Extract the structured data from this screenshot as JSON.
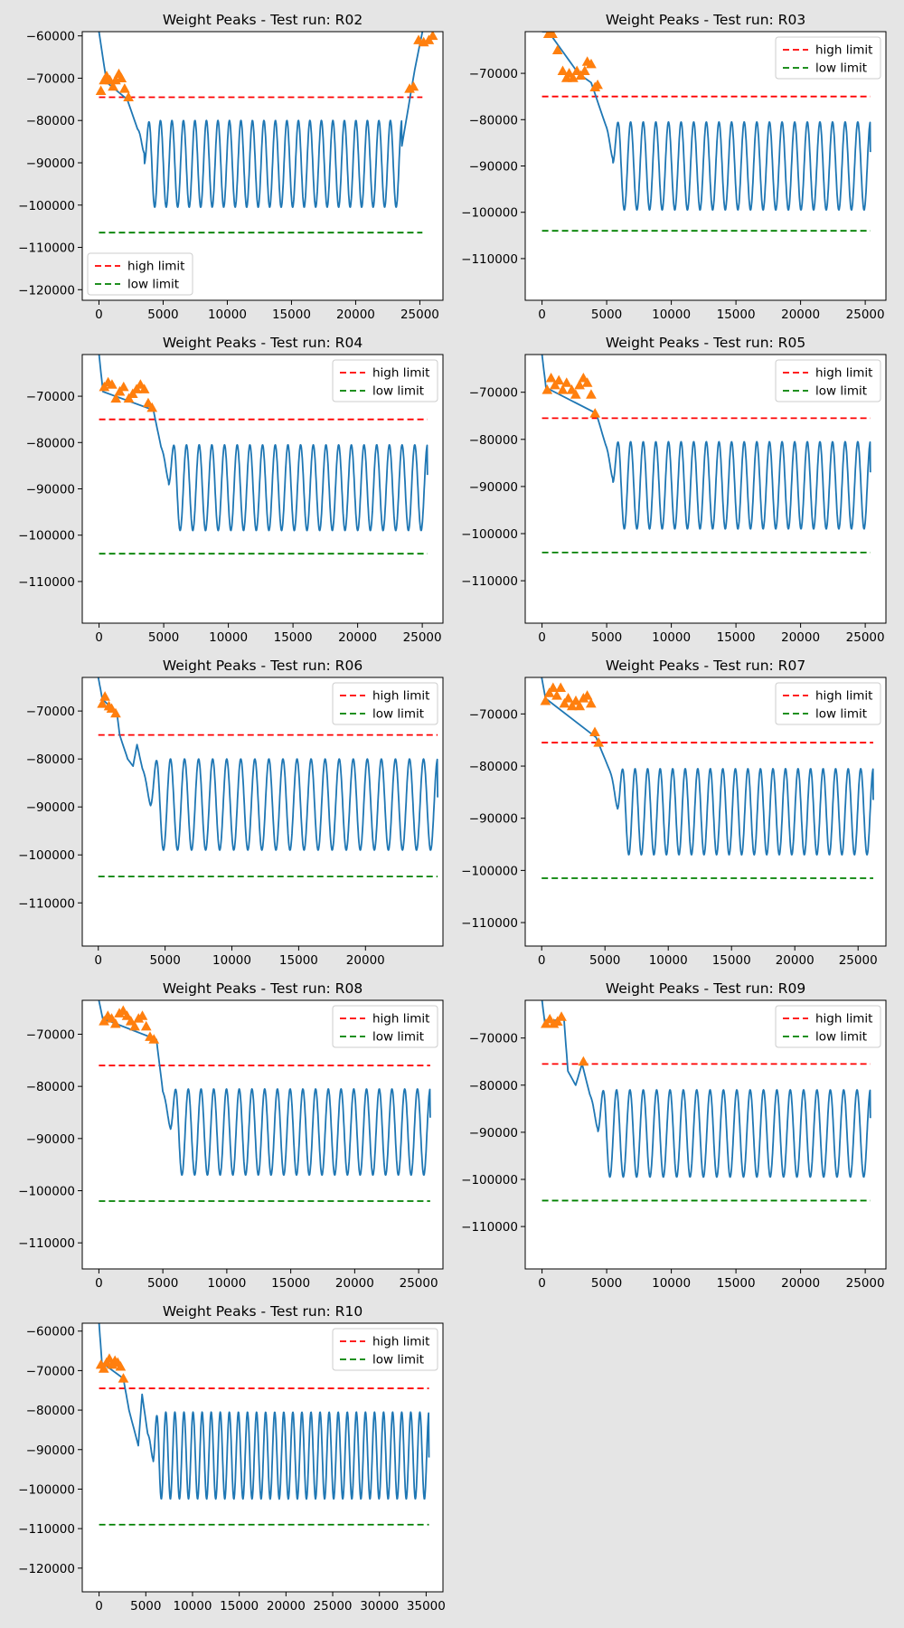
{
  "figure": {
    "background": "#e5e5e5",
    "colors": {
      "signal": "#1f77b4",
      "peaks": "#ff7f0e",
      "high_limit": "#ff0000",
      "low_limit": "#008000"
    },
    "legend": {
      "high_label": "high limit",
      "low_label": "low limit"
    }
  },
  "chart_data": [
    {
      "type": "line",
      "title": "Weight Peaks - Test run: R02",
      "xlim": [
        -1300,
        26800
      ],
      "ylim": [
        -122500,
        -59000
      ],
      "xticks": [
        0,
        5000,
        10000,
        15000,
        20000,
        25000
      ],
      "yticks": [
        -120000,
        -110000,
        -100000,
        -90000,
        -80000,
        -70000,
        -60000
      ],
      "high_limit": -74500,
      "low_limit": -106500,
      "legend_loc": "lower-left",
      "segments": [
        {
          "x_start": 0,
          "y_start": -59000,
          "x_end": 600,
          "y_end": -71000
        },
        {
          "x_start": 2200,
          "y_start": -75000,
          "x_end": 3000,
          "y_end": -82000
        },
        {
          "x_start": 23600,
          "y_start": -86000,
          "x_end": 24600,
          "y_end": -68000
        },
        {
          "x_start": 24600,
          "y_start": -68000,
          "x_end": 25200,
          "y_end": -59000
        }
      ],
      "oscillation": {
        "x_start": 3000,
        "x_end": 23600,
        "pre_level": -82000,
        "settle_level": -86000,
        "cycles": 23,
        "top": -80000,
        "bottom": -100500,
        "end_value": -86000
      },
      "peaks": [
        {
          "x": 150,
          "y": -73000
        },
        {
          "x": 400,
          "y": -70500
        },
        {
          "x": 600,
          "y": -69500
        },
        {
          "x": 850,
          "y": -70500
        },
        {
          "x": 1100,
          "y": -72000
        },
        {
          "x": 1300,
          "y": -70500
        },
        {
          "x": 1550,
          "y": -69000
        },
        {
          "x": 1750,
          "y": -70000
        },
        {
          "x": 2000,
          "y": -72500
        },
        {
          "x": 2300,
          "y": -74500
        },
        {
          "x": 24200,
          "y": -72500
        },
        {
          "x": 24500,
          "y": -72000
        },
        {
          "x": 24900,
          "y": -61000
        },
        {
          "x": 25300,
          "y": -61500
        },
        {
          "x": 25700,
          "y": -61000
        },
        {
          "x": 26000,
          "y": -60000
        }
      ]
    },
    {
      "type": "line",
      "title": "Weight Peaks - Test run: R03",
      "xlim": [
        -1300,
        26600
      ],
      "ylim": [
        -119000,
        -61000
      ],
      "xticks": [
        0,
        5000,
        10000,
        15000,
        20000,
        25000
      ],
      "yticks": [
        -110000,
        -100000,
        -90000,
        -80000,
        -70000
      ],
      "high_limit": -75000,
      "low_limit": -104000,
      "legend_loc": "upper-right",
      "segments": [
        {
          "x_start": 0,
          "y_start": -61000,
          "x_end": 500,
          "y_end": -61000
        },
        {
          "x_start": 500,
          "y_start": -61000,
          "x_end": 2800,
          "y_end": -70000
        },
        {
          "x_start": 3800,
          "y_start": -72000,
          "x_end": 4900,
          "y_end": -81000
        }
      ],
      "oscillation": {
        "x_start": 4900,
        "x_end": 25400,
        "pre_level": -81000,
        "settle_level": -88000,
        "cycles": 21,
        "top": -80500,
        "bottom": -99500,
        "end_value": -87000
      },
      "peaks": [
        {
          "x": 500,
          "y": -61500
        },
        {
          "x": 800,
          "y": -61500
        },
        {
          "x": 1200,
          "y": -65000
        },
        {
          "x": 1600,
          "y": -69500
        },
        {
          "x": 1900,
          "y": -71000
        },
        {
          "x": 2100,
          "y": -70000
        },
        {
          "x": 2400,
          "y": -71000
        },
        {
          "x": 2700,
          "y": -69500
        },
        {
          "x": 3000,
          "y": -70500
        },
        {
          "x": 3300,
          "y": -69500
        },
        {
          "x": 3500,
          "y": -67500
        },
        {
          "x": 3800,
          "y": -68000
        },
        {
          "x": 4100,
          "y": -73000
        },
        {
          "x": 4300,
          "y": -72500
        }
      ]
    },
    {
      "type": "line",
      "title": "Weight Peaks - Test run: R04",
      "xlim": [
        -1300,
        26600
      ],
      "ylim": [
        -119000,
        -61000
      ],
      "xticks": [
        0,
        5000,
        10000,
        15000,
        20000,
        25000
      ],
      "yticks": [
        -110000,
        -100000,
        -90000,
        -80000,
        -70000
      ],
      "high_limit": -75000,
      "low_limit": -104000,
      "legend_loc": "upper-right",
      "segments": [
        {
          "x_start": 0,
          "y_start": -61000,
          "x_end": 300,
          "y_end": -69000
        },
        {
          "x_start": 4200,
          "y_start": -73000,
          "x_end": 4800,
          "y_end": -81000
        }
      ],
      "oscillation": {
        "x_start": 4800,
        "x_end": 25400,
        "pre_level": -81000,
        "settle_level": -88000,
        "cycles": 21,
        "top": -80500,
        "bottom": -99000,
        "end_value": -87000
      },
      "peaks": [
        {
          "x": 400,
          "y": -68000
        },
        {
          "x": 700,
          "y": -67000
        },
        {
          "x": 1000,
          "y": -67500
        },
        {
          "x": 1300,
          "y": -70500
        },
        {
          "x": 1600,
          "y": -69000
        },
        {
          "x": 1900,
          "y": -68000
        },
        {
          "x": 2300,
          "y": -70500
        },
        {
          "x": 2600,
          "y": -69500
        },
        {
          "x": 2900,
          "y": -68500
        },
        {
          "x": 3200,
          "y": -67500
        },
        {
          "x": 3500,
          "y": -68500
        },
        {
          "x": 3800,
          "y": -71500
        },
        {
          "x": 4100,
          "y": -72500
        }
      ]
    },
    {
      "type": "line",
      "title": "Weight Peaks - Test run: R05",
      "xlim": [
        -1300,
        26600
      ],
      "ylim": [
        -119000,
        -62000
      ],
      "xticks": [
        0,
        5000,
        10000,
        15000,
        20000,
        25000
      ],
      "yticks": [
        -110000,
        -100000,
        -90000,
        -80000,
        -70000
      ],
      "high_limit": -75500,
      "low_limit": -104000,
      "legend_loc": "upper-right",
      "segments": [
        {
          "x_start": 0,
          "y_start": -62000,
          "x_end": 300,
          "y_end": -69000
        },
        {
          "x_start": 4200,
          "y_start": -74500,
          "x_end": 4900,
          "y_end": -81000
        }
      ],
      "oscillation": {
        "x_start": 4900,
        "x_end": 25400,
        "pre_level": -81000,
        "settle_level": -88000,
        "cycles": 21,
        "top": -80500,
        "bottom": -99000,
        "end_value": -87000
      },
      "peaks": [
        {
          "x": 400,
          "y": -69500
        },
        {
          "x": 700,
          "y": -67000
        },
        {
          "x": 1000,
          "y": -68500
        },
        {
          "x": 1300,
          "y": -67500
        },
        {
          "x": 1600,
          "y": -69500
        },
        {
          "x": 1900,
          "y": -68000
        },
        {
          "x": 2300,
          "y": -69500
        },
        {
          "x": 2600,
          "y": -70500
        },
        {
          "x": 2900,
          "y": -68500
        },
        {
          "x": 3200,
          "y": -67000
        },
        {
          "x": 3500,
          "y": -68000
        },
        {
          "x": 3800,
          "y": -70500
        },
        {
          "x": 4100,
          "y": -74500
        }
      ]
    },
    {
      "type": "line",
      "title": "Weight Peaks - Test run: R06",
      "xlim": [
        -1200,
        25800
      ],
      "ylim": [
        -119000,
        -63000
      ],
      "xticks": [
        0,
        5000,
        10000,
        15000,
        20000
      ],
      "yticks": [
        -110000,
        -100000,
        -90000,
        -80000,
        -70000
      ],
      "high_limit": -75000,
      "low_limit": -104500,
      "legend_loc": "upper-right",
      "segments": [
        {
          "x_start": 0,
          "y_start": -63000,
          "x_end": 300,
          "y_end": -67500
        },
        {
          "x_start": 1400,
          "y_start": -70500,
          "x_end": 1600,
          "y_end": -75000
        },
        {
          "x_start": 1600,
          "y_start": -75000,
          "x_end": 2200,
          "y_end": -80000
        },
        {
          "x_start": 2200,
          "y_start": -80000,
          "x_end": 2600,
          "y_end": -81500
        },
        {
          "x_start": 2600,
          "y_start": -81500,
          "x_end": 2900,
          "y_end": -77000
        },
        {
          "x_start": 2900,
          "y_start": -77000,
          "x_end": 3300,
          "y_end": -82000
        }
      ],
      "oscillation": {
        "x_start": 3300,
        "x_end": 25400,
        "pre_level": -82000,
        "settle_level": -90000,
        "cycles": 21,
        "top": -80000,
        "bottom": -99000,
        "end_value": -88000
      },
      "peaks": [
        {
          "x": 300,
          "y": -68500
        },
        {
          "x": 500,
          "y": -67000
        },
        {
          "x": 800,
          "y": -69000
        },
        {
          "x": 1000,
          "y": -69500
        },
        {
          "x": 1300,
          "y": -70500
        }
      ]
    },
    {
      "type": "line",
      "title": "Weight Peaks - Test run: R07",
      "xlim": [
        -1300,
        27200
      ],
      "ylim": [
        -114500,
        -63000
      ],
      "xticks": [
        0,
        5000,
        10000,
        15000,
        20000,
        25000
      ],
      "yticks": [
        -110000,
        -100000,
        -90000,
        -80000,
        -70000
      ],
      "high_limit": -75500,
      "low_limit": -101500,
      "legend_loc": "upper-right",
      "segments": [
        {
          "x_start": 0,
          "y_start": -63000,
          "x_end": 300,
          "y_end": -67000
        },
        {
          "x_start": 4300,
          "y_start": -74500,
          "x_end": 5400,
          "y_end": -81000
        }
      ],
      "oscillation": {
        "x_start": 5400,
        "x_end": 26200,
        "pre_level": -81000,
        "settle_level": -88000,
        "cycles": 21,
        "top": -80500,
        "bottom": -97000,
        "end_value": -86500
      },
      "peaks": [
        {
          "x": 300,
          "y": -67500
        },
        {
          "x": 600,
          "y": -66000
        },
        {
          "x": 900,
          "y": -65000
        },
        {
          "x": 1200,
          "y": -66500
        },
        {
          "x": 1500,
          "y": -65000
        },
        {
          "x": 1800,
          "y": -68000
        },
        {
          "x": 2100,
          "y": -67000
        },
        {
          "x": 2400,
          "y": -68500
        },
        {
          "x": 2700,
          "y": -67500
        },
        {
          "x": 3000,
          "y": -68500
        },
        {
          "x": 3300,
          "y": -67000
        },
        {
          "x": 3600,
          "y": -66500
        },
        {
          "x": 3900,
          "y": -68000
        },
        {
          "x": 4200,
          "y": -73500
        },
        {
          "x": 4500,
          "y": -75500
        }
      ]
    },
    {
      "type": "line",
      "title": "Weight Peaks - Test run: R08",
      "xlim": [
        -1300,
        26900
      ],
      "ylim": [
        -115000,
        -63500
      ],
      "xticks": [
        0,
        5000,
        10000,
        15000,
        20000,
        25000
      ],
      "yticks": [
        -110000,
        -100000,
        -90000,
        -80000,
        -70000
      ],
      "high_limit": -76000,
      "low_limit": -102000,
      "legend_loc": "upper-right",
      "segments": [
        {
          "x_start": 0,
          "y_start": -63500,
          "x_end": 300,
          "y_end": -67000
        },
        {
          "x_start": 4500,
          "y_start": -71000,
          "x_end": 5000,
          "y_end": -81000
        }
      ],
      "oscillation": {
        "x_start": 5000,
        "x_end": 25900,
        "pre_level": -81000,
        "settle_level": -88000,
        "cycles": 21,
        "top": -80500,
        "bottom": -97000,
        "end_value": -86000
      },
      "peaks": [
        {
          "x": 400,
          "y": -67500
        },
        {
          "x": 700,
          "y": -66500
        },
        {
          "x": 1000,
          "y": -67000
        },
        {
          "x": 1300,
          "y": -68000
        },
        {
          "x": 1600,
          "y": -66000
        },
        {
          "x": 1900,
          "y": -65500
        },
        {
          "x": 2200,
          "y": -66500
        },
        {
          "x": 2500,
          "y": -67500
        },
        {
          "x": 2800,
          "y": -68500
        },
        {
          "x": 3100,
          "y": -67000
        },
        {
          "x": 3400,
          "y": -66500
        },
        {
          "x": 3700,
          "y": -68500
        },
        {
          "x": 4000,
          "y": -70500
        },
        {
          "x": 4300,
          "y": -71000
        }
      ]
    },
    {
      "type": "line",
      "title": "Weight Peaks - Test run: R09",
      "xlim": [
        -1300,
        26600
      ],
      "ylim": [
        -119000,
        -62000
      ],
      "xticks": [
        0,
        5000,
        10000,
        15000,
        20000,
        25000
      ],
      "yticks": [
        -110000,
        -100000,
        -90000,
        -80000,
        -70000
      ],
      "high_limit": -75500,
      "low_limit": -104500,
      "legend_loc": "upper-right",
      "segments": [
        {
          "x_start": 0,
          "y_start": -62000,
          "x_end": 200,
          "y_end": -66500
        },
        {
          "x_start": 1700,
          "y_start": -66000,
          "x_end": 2000,
          "y_end": -77000
        },
        {
          "x_start": 2000,
          "y_start": -77000,
          "x_end": 2600,
          "y_end": -80000
        },
        {
          "x_start": 2600,
          "y_start": -80000,
          "x_end": 3100,
          "y_end": -75500
        },
        {
          "x_start": 3100,
          "y_start": -75500,
          "x_end": 3700,
          "y_end": -82000
        }
      ],
      "oscillation": {
        "x_start": 3700,
        "x_end": 25400,
        "pre_level": -82000,
        "settle_level": -89000,
        "cycles": 21,
        "top": -81000,
        "bottom": -99500,
        "end_value": -87000
      },
      "peaks": [
        {
          "x": 300,
          "y": -67000
        },
        {
          "x": 600,
          "y": -66000
        },
        {
          "x": 900,
          "y": -67000
        },
        {
          "x": 1200,
          "y": -66500
        },
        {
          "x": 1500,
          "y": -65500
        },
        {
          "x": 3200,
          "y": -75000
        }
      ]
    },
    {
      "type": "line",
      "title": "Weight Peaks - Test run: R10",
      "xlim": [
        -1800,
        36800
      ],
      "ylim": [
        -126000,
        -58000
      ],
      "xticks": [
        0,
        5000,
        10000,
        15000,
        20000,
        25000,
        30000,
        35000
      ],
      "yticks": [
        -120000,
        -110000,
        -100000,
        -90000,
        -80000,
        -70000,
        -60000
      ],
      "high_limit": -74500,
      "low_limit": -109000,
      "legend_loc": "upper-right",
      "segments": [
        {
          "x_start": 0,
          "y_start": -58000,
          "x_end": 300,
          "y_end": -68000
        },
        {
          "x_start": 2600,
          "y_start": -72000,
          "x_end": 3200,
          "y_end": -80000
        },
        {
          "x_start": 3200,
          "y_start": -80000,
          "x_end": 4200,
          "y_end": -89000
        },
        {
          "x_start": 4200,
          "y_start": -89000,
          "x_end": 4600,
          "y_end": -76000
        },
        {
          "x_start": 4600,
          "y_start": -76000,
          "x_end": 5200,
          "y_end": -86000
        }
      ],
      "oscillation": {
        "x_start": 5200,
        "x_end": 35300,
        "pre_level": -86000,
        "settle_level": -92000,
        "cycles": 31,
        "top": -80500,
        "bottom": -102500,
        "end_value": -92000
      },
      "peaks": [
        {
          "x": 200,
          "y": -68500
        },
        {
          "x": 500,
          "y": -69500
        },
        {
          "x": 800,
          "y": -68000
        },
        {
          "x": 1100,
          "y": -67000
        },
        {
          "x": 1400,
          "y": -68500
        },
        {
          "x": 1700,
          "y": -67500
        },
        {
          "x": 2000,
          "y": -68000
        },
        {
          "x": 2300,
          "y": -69000
        },
        {
          "x": 2600,
          "y": -72000
        }
      ]
    }
  ]
}
